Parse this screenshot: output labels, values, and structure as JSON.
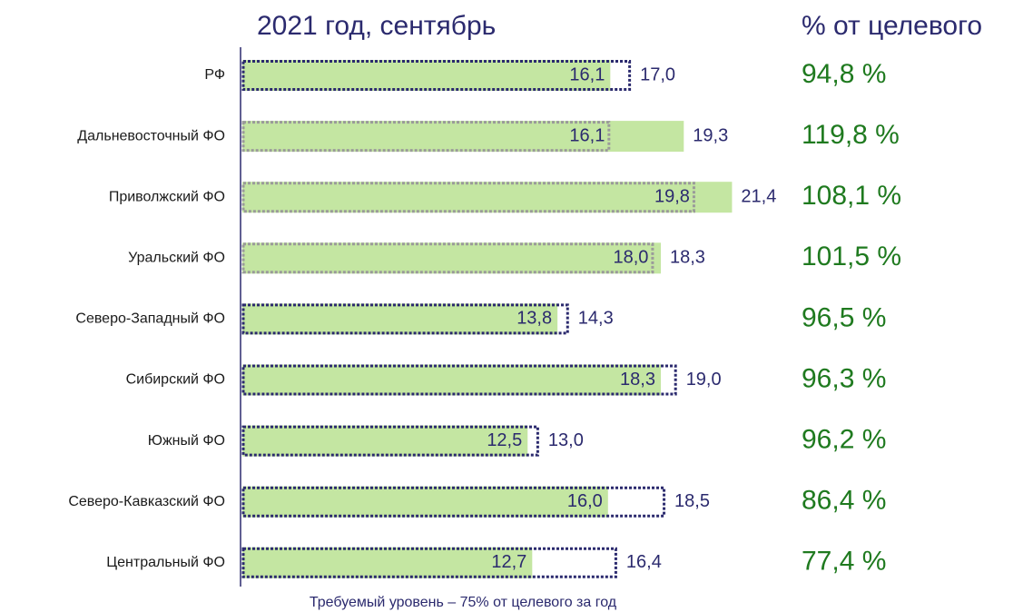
{
  "chart_data": {
    "type": "bar",
    "title": "2021 год, сентябрь",
    "column_title": "% от целевого",
    "footnote": "Требуемый уровень – 75% от целевого за год",
    "categories": [
      "РФ",
      "Дальневосточный ФО",
      "Приволжский ФО",
      "Уральский ФО",
      "Северо-Западный ФО",
      "Сибирский ФО",
      "Южный ФО",
      "Северо-Кавказский ФО",
      "Центральный ФО"
    ],
    "series": [
      {
        "color": "#c4e6a2",
        "style": "filled",
        "values": [
          16.1,
          19.3,
          21.4,
          18.3,
          13.8,
          18.3,
          12.5,
          16.0,
          12.7
        ],
        "value_labels": [
          "16,1",
          "19,3",
          "21,4",
          "18,3",
          "13,8",
          "18,3",
          "12,5",
          "16,0",
          "12,7"
        ]
      },
      {
        "color": "#2b2a6e",
        "style": "dotted",
        "values": [
          17.0,
          16.1,
          19.8,
          18.0,
          14.3,
          19.0,
          13.0,
          18.5,
          16.4
        ],
        "value_labels": [
          "17,0",
          "16,1",
          "19,8",
          "18,0",
          "14,3",
          "19,0",
          "13,0",
          "18,5",
          "16,4"
        ]
      }
    ],
    "percent": {
      "color": "#1f7a1f",
      "values": [
        94.8,
        119.8,
        108.1,
        101.5,
        96.5,
        96.3,
        96.2,
        86.4,
        77.4
      ],
      "value_labels": [
        "94,8 %",
        "119,8 %",
        "108,1 %",
        "101,5 %",
        "96,5 %",
        "96,3 %",
        "96,2 %",
        "86,4 %",
        "77,4 %"
      ]
    },
    "xlim": [
      0,
      30
    ]
  }
}
